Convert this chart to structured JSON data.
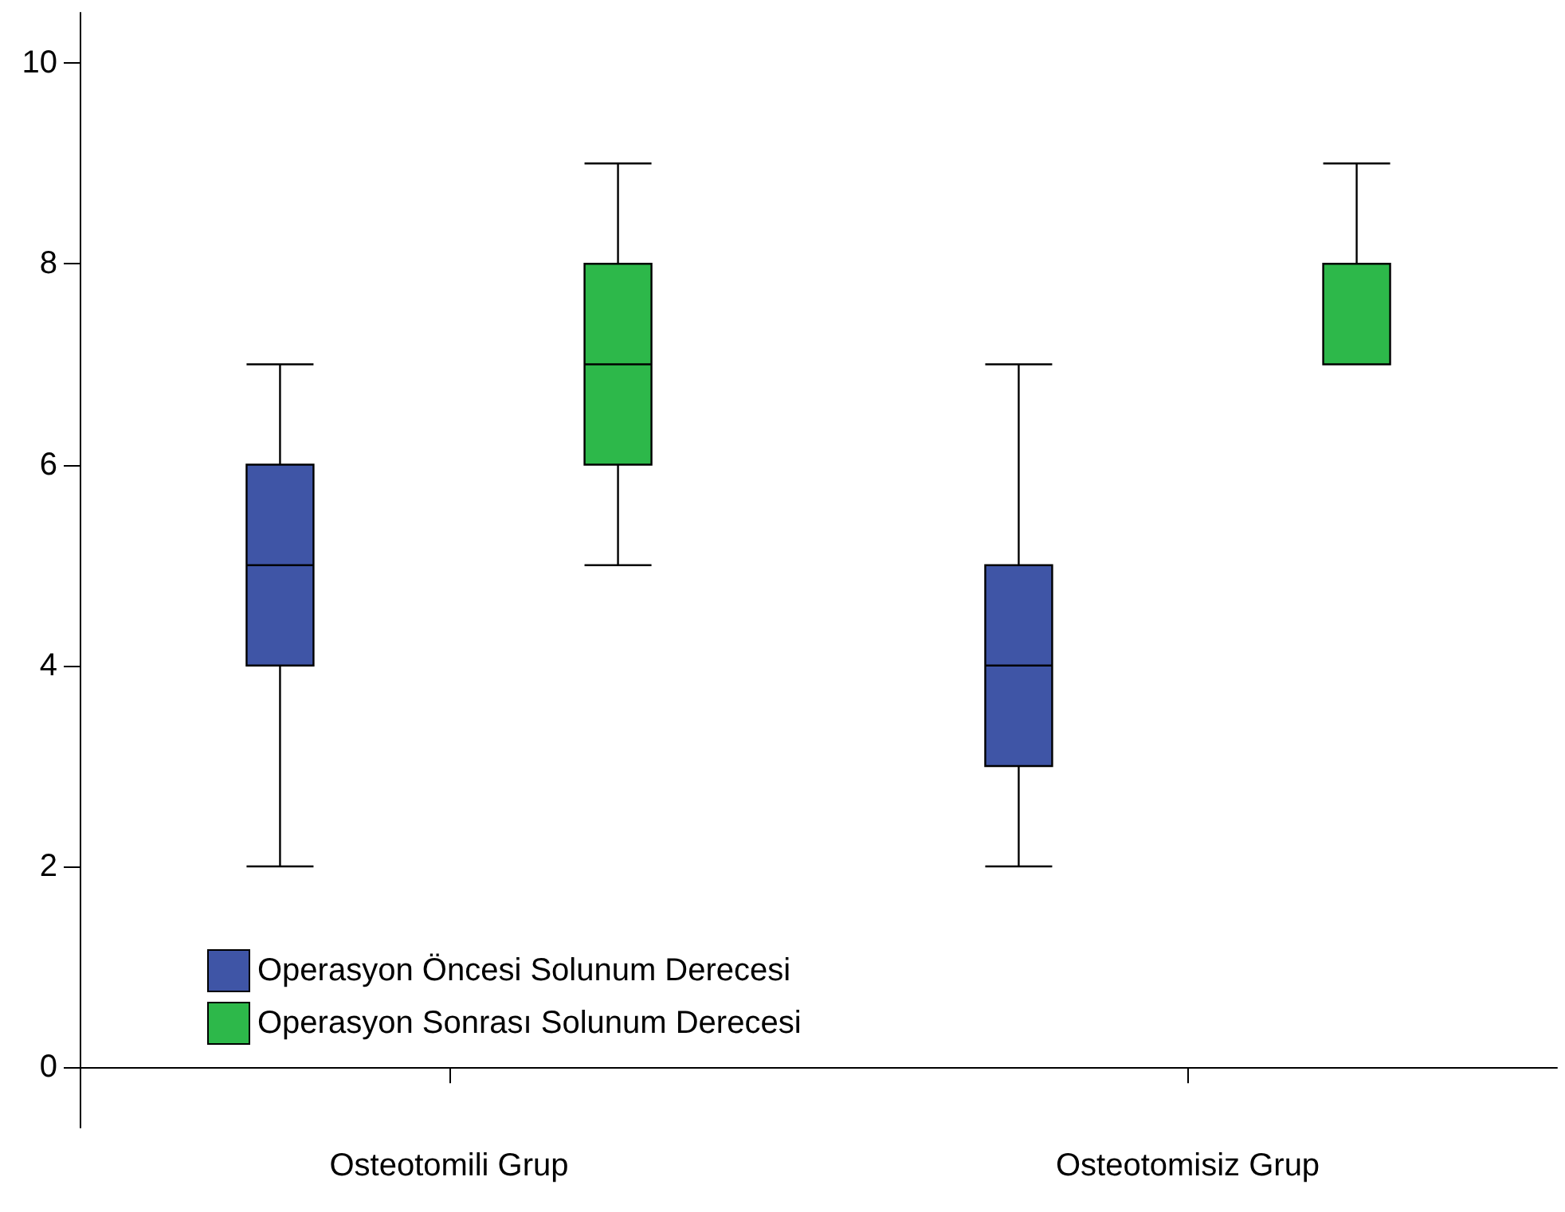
{
  "chart_data": {
    "type": "box",
    "categories": [
      "Osteotomili Grup",
      "Osteotomisiz Grup"
    ],
    "series": [
      {
        "name": "Operasyon Öncesi Solunum Derecesi",
        "color": "#3f55a6",
        "boxes": [
          {
            "low": 2,
            "q1": 4,
            "median": 5,
            "q3": 6,
            "high": 7
          },
          {
            "low": 2,
            "q1": 3,
            "median": 4,
            "q3": 5,
            "high": 7
          }
        ]
      },
      {
        "name": "Operasyon Sonrası Solunum Derecesi",
        "color": "#2db84a",
        "boxes": [
          {
            "low": 5,
            "q1": 6,
            "median": 7,
            "q3": 8,
            "high": 9
          },
          {
            "low": 7,
            "q1": 7,
            "median": 8,
            "q3": 8,
            "high": 9
          }
        ]
      }
    ],
    "ylim": [
      -0.6,
      10.5
    ],
    "yticks": [
      0,
      2,
      4,
      6,
      8,
      10
    ],
    "grid": false,
    "legend": "bottom left"
  }
}
